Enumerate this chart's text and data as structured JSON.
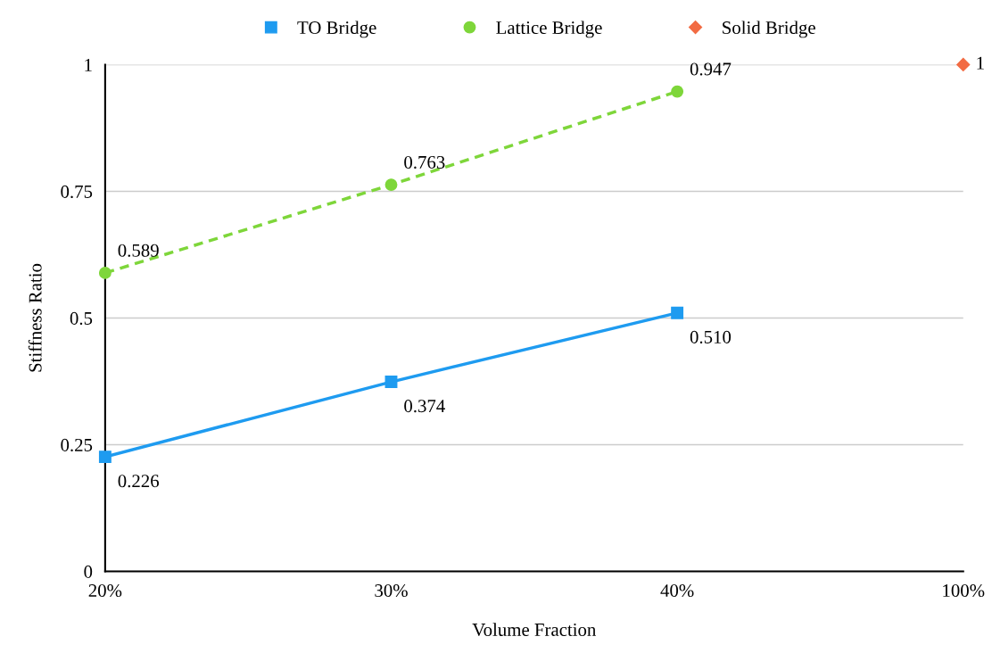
{
  "chart_data": {
    "type": "line",
    "xlabel": "Volume Fraction",
    "ylabel": "Stiffness Ratio",
    "categories": [
      "20%",
      "30%",
      "40%",
      "100%"
    ],
    "series": [
      {
        "name": "TO Bridge",
        "color": "#1e9bf0",
        "values": [
          0.226,
          0.374,
          0.51,
          null
        ],
        "value_labels": [
          "0.226",
          "0.374",
          "0.510",
          null
        ],
        "marker": "square",
        "line_style": "solid"
      },
      {
        "name": "Lattice Bridge",
        "color": "#7ed63a",
        "values": [
          0.589,
          0.763,
          0.947,
          null
        ],
        "value_labels": [
          "0.589",
          "0.763",
          "0.947",
          null
        ],
        "marker": "circle",
        "line_style": "dashed"
      },
      {
        "name": "Solid Bridge",
        "color": "#f26b43",
        "values": [
          null,
          null,
          null,
          1
        ],
        "value_labels": [
          null,
          null,
          null,
          "1"
        ],
        "marker": "diamond",
        "line_style": "none"
      }
    ],
    "ylim": [
      0,
      1
    ],
    "yticks": [
      0,
      0.25,
      0.5,
      0.75,
      1
    ],
    "grid": "y",
    "legend": "top"
  }
}
